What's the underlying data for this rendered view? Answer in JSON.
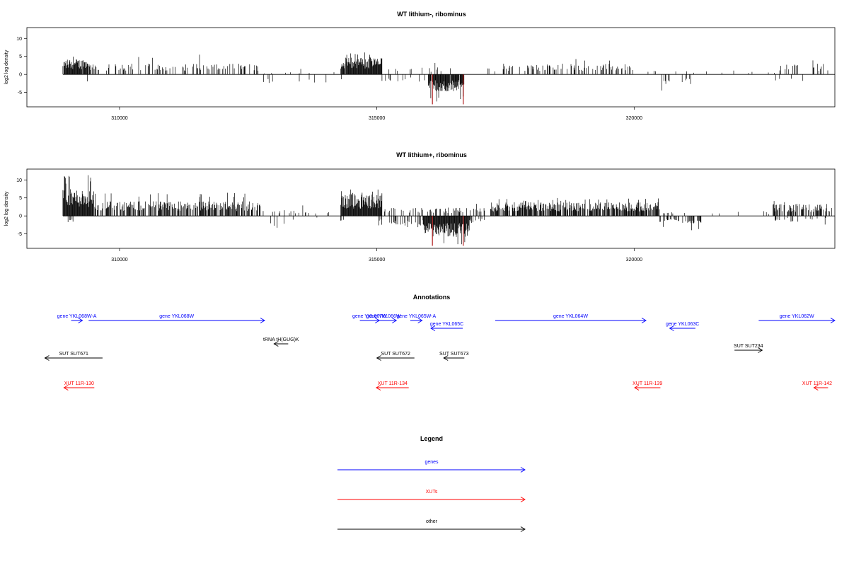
{
  "colors": {
    "genes": "#0000ff",
    "xuts": "#ff0000",
    "other": "#000000",
    "axis": "#000000",
    "highlight": "#b22222"
  },
  "chart_data": [
    {
      "type": "bar",
      "title": "WT lithium-, ribominus",
      "ylabel": "log2 log density",
      "xlim": [
        308200,
        323900
      ],
      "ylim": [
        -9,
        13
      ],
      "x_ticks": [
        310000,
        315000,
        320000
      ],
      "y_ticks": [
        -5,
        0,
        5,
        10
      ],
      "x_range": [
        308900,
        323900
      ],
      "grid": false,
      "legend": "none",
      "series": [
        {
          "strand": "plus",
          "regions": [
            {
              "start": 308900,
              "end": 309400,
              "mean": 3.2,
              "max": 6.0,
              "density": 0.9
            },
            {
              "start": 309400,
              "end": 312800,
              "mean": 2.2,
              "max": 6.1,
              "density": 0.3
            },
            {
              "start": 312800,
              "end": 314300,
              "mean": 0.6,
              "max": 2.0,
              "density": 0.03
            },
            {
              "start": 314300,
              "end": 315100,
              "mean": 3.5,
              "max": 6.2,
              "density": 0.95
            },
            {
              "start": 315100,
              "end": 317300,
              "mean": 1.5,
              "max": 3.5,
              "density": 0.04
            },
            {
              "start": 317300,
              "end": 320000,
              "mean": 2.2,
              "max": 4.4,
              "density": 0.28
            },
            {
              "start": 320000,
              "end": 322800,
              "mean": 0.8,
              "max": 2.0,
              "density": 0.04
            },
            {
              "start": 322800,
              "end": 323900,
              "mean": 2.2,
              "max": 4.0,
              "density": 0.12
            }
          ]
        },
        {
          "strand": "minus",
          "regions": [
            {
              "start": 309300,
              "end": 309400,
              "mean": 1.5,
              "max": 2.0,
              "density": 0.15
            },
            {
              "start": 312800,
              "end": 314600,
              "mean": 1.8,
              "max": 3.8,
              "density": 0.08
            },
            {
              "start": 315100,
              "end": 316000,
              "mean": 1.5,
              "max": 3.0,
              "density": 0.12
            },
            {
              "start": 316000,
              "end": 316700,
              "mean": 3.5,
              "max": 8.0,
              "density": 0.95
            },
            {
              "start": 320500,
              "end": 321200,
              "mean": 2.0,
              "max": 4.8,
              "density": 0.12
            },
            {
              "start": 322700,
              "end": 323300,
              "mean": 1.4,
              "max": 3.0,
              "density": 0.08
            }
          ]
        }
      ],
      "highlights": [
        {
          "x": 316080,
          "y": -8.3
        },
        {
          "x": 316680,
          "y": -8.3
        }
      ]
    },
    {
      "type": "bar",
      "title": "WT lithium+, ribominus",
      "ylabel": "log2 log density",
      "xlim": [
        308200,
        323900
      ],
      "ylim": [
        -9,
        13
      ],
      "x_ticks": [
        310000,
        315000,
        320000
      ],
      "y_ticks": [
        -5,
        0,
        5,
        10
      ],
      "x_range": [
        308900,
        323900
      ],
      "grid": false,
      "legend": "none",
      "series": [
        {
          "strand": "plus",
          "regions": [
            {
              "start": 308900,
              "end": 309500,
              "mean": 5.5,
              "max": 11.5,
              "density": 1.0
            },
            {
              "start": 309500,
              "end": 312800,
              "mean": 3.0,
              "max": 6.8,
              "density": 0.6
            },
            {
              "start": 312800,
              "end": 314300,
              "mean": 1.2,
              "max": 3.0,
              "density": 0.1
            },
            {
              "start": 314300,
              "end": 315100,
              "mean": 4.5,
              "max": 7.5,
              "density": 1.0
            },
            {
              "start": 315100,
              "end": 317200,
              "mean": 1.8,
              "max": 4.0,
              "density": 0.25
            },
            {
              "start": 317200,
              "end": 320500,
              "mean": 2.8,
              "max": 5.0,
              "density": 0.75
            },
            {
              "start": 320500,
              "end": 322700,
              "mean": 1.0,
              "max": 2.8,
              "density": 0.08
            },
            {
              "start": 322700,
              "end": 323900,
              "mean": 2.5,
              "max": 4.8,
              "density": 0.5
            }
          ]
        },
        {
          "strand": "minus",
          "regions": [
            {
              "start": 309000,
              "end": 309100,
              "mean": 1.2,
              "max": 1.8,
              "density": 0.2
            },
            {
              "start": 312900,
              "end": 313200,
              "mean": 2.5,
              "max": 6.0,
              "density": 0.15
            },
            {
              "start": 313200,
              "end": 314400,
              "mean": 1.0,
              "max": 2.2,
              "density": 0.05
            },
            {
              "start": 315000,
              "end": 315900,
              "mean": 2.0,
              "max": 4.0,
              "density": 0.3
            },
            {
              "start": 315900,
              "end": 316800,
              "mean": 4.5,
              "max": 9.0,
              "density": 1.0
            },
            {
              "start": 316800,
              "end": 317100,
              "mean": 1.8,
              "max": 3.5,
              "density": 0.3
            },
            {
              "start": 320500,
              "end": 321300,
              "mean": 1.6,
              "max": 4.0,
              "density": 0.35
            },
            {
              "start": 322700,
              "end": 323800,
              "mean": 1.2,
              "max": 2.6,
              "density": 0.15
            }
          ]
        }
      ],
      "highlights": [
        {
          "x": 316080,
          "y": -8.3
        },
        {
          "x": 316680,
          "y": -8.3
        }
      ]
    }
  ],
  "annotations": {
    "title": "Annotations",
    "xlim": [
      308200,
      323900
    ],
    "items": [
      {
        "label": "gene YKL068W-A",
        "start": 309060,
        "end": 309280,
        "strand": "+",
        "category": "genes",
        "track": 1
      },
      {
        "label": "gene YKL068W",
        "start": 309400,
        "end": 312820,
        "strand": "+",
        "category": "genes",
        "track": 1
      },
      {
        "label": "gene YKL067W",
        "start": 314670,
        "end": 315050,
        "strand": "+",
        "category": "genes",
        "track": 1
      },
      {
        "label": "gene YKL066W",
        "start": 314880,
        "end": 315380,
        "strand": "+",
        "category": "genes",
        "track": 1
      },
      {
        "label": "gene YKL065W-A",
        "start": 315650,
        "end": 315880,
        "strand": "+",
        "category": "genes",
        "track": 1
      },
      {
        "label": "gene YKL065C",
        "start": 316050,
        "end": 316670,
        "strand": "-",
        "category": "genes",
        "track": 2
      },
      {
        "label": "gene YKL064W",
        "start": 317300,
        "end": 320230,
        "strand": "+",
        "category": "genes",
        "track": 1
      },
      {
        "label": "gene YKL063C",
        "start": 320690,
        "end": 321190,
        "strand": "-",
        "category": "genes",
        "track": 2
      },
      {
        "label": "gene YKL062W",
        "start": 322420,
        "end": 323900,
        "strand": "+",
        "category": "genes",
        "track": 1
      },
      {
        "label": "tRNA tH(GUG)K",
        "start": 313080,
        "end": 313200,
        "strand": "-",
        "category": "other",
        "track": 3
      },
      {
        "label": "SUT SUT671",
        "start": 308550,
        "end": 309670,
        "strand": "-",
        "category": "other",
        "track": 4
      },
      {
        "label": "SUT SUT672",
        "start": 315000,
        "end": 315730,
        "strand": "-",
        "category": "other",
        "track": 4
      },
      {
        "label": "SUT SUT673",
        "start": 316300,
        "end": 316700,
        "strand": "-",
        "category": "other",
        "track": 4
      },
      {
        "label": "SUT SUT234",
        "start": 321950,
        "end": 322490,
        "strand": "+",
        "category": "other",
        "track": 5
      },
      {
        "label": "XUT 11R-130",
        "start": 308920,
        "end": 309510,
        "strand": "-",
        "category": "xuts",
        "track": 6
      },
      {
        "label": "XUT 11R-134",
        "start": 314990,
        "end": 315620,
        "strand": "-",
        "category": "xuts",
        "track": 6
      },
      {
        "label": "XUT 11R-139",
        "start": 320010,
        "end": 320510,
        "strand": "-",
        "category": "xuts",
        "track": 6
      },
      {
        "label": "XUT 11R-142",
        "start": 323640,
        "end": 323620,
        "strand": "-",
        "category": "xuts",
        "track": 6
      }
    ]
  },
  "legend": {
    "title": "Legend",
    "items": [
      {
        "label": "genes",
        "category": "genes"
      },
      {
        "label": "XUTs",
        "category": "xuts"
      },
      {
        "label": "other",
        "category": "other"
      }
    ]
  }
}
